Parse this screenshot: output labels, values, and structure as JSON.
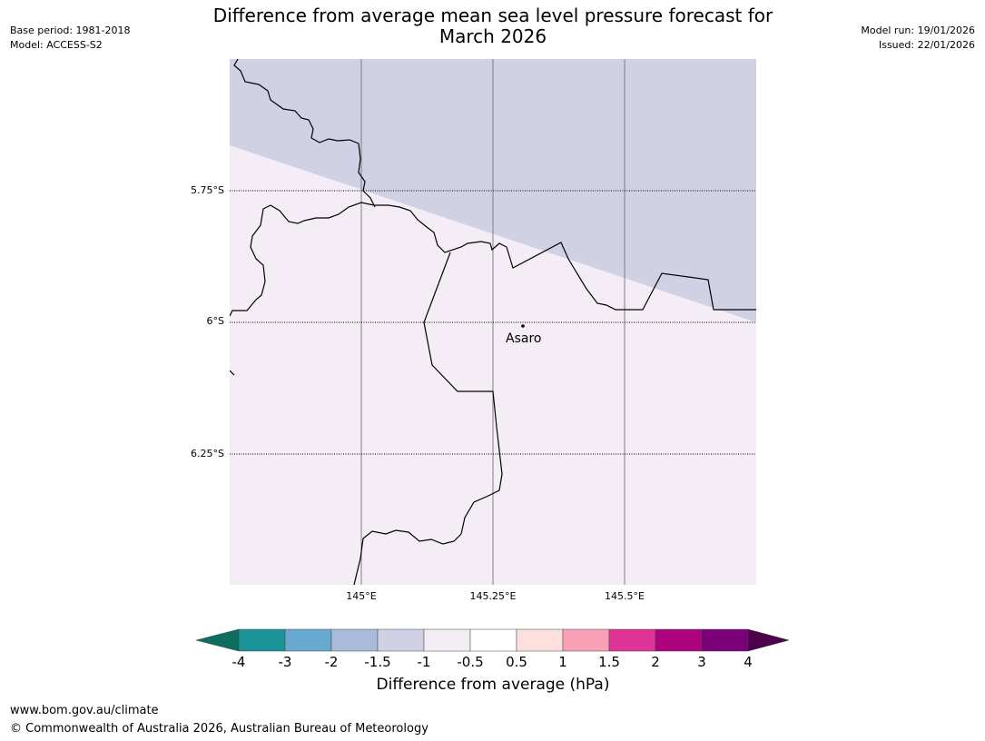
{
  "header": {
    "title_line1": "Difference from average mean sea level pressure forecast for",
    "title_line2": "March 2026",
    "base_period": "Base period: 1981-2018",
    "model": "Model: ACCESS-S2",
    "model_run": "Model run: 19/01/2026",
    "issued": "Issued: 22/01/2026"
  },
  "map": {
    "lat_labels": [
      "5.75°S",
      "6°S",
      "6.25°S"
    ],
    "lon_labels": [
      "145°E",
      "145.25°E",
      "145.5°E"
    ],
    "place_name": "Asaro",
    "fill_colors": {
      "upper": "#d1d1e5",
      "lower": "#f4edf6"
    }
  },
  "colorbar": {
    "title": "Difference from average (hPa)",
    "ticks": [
      "-4",
      "-3",
      "-2",
      "-1.5",
      "-1",
      "-0.5",
      "0.5",
      "1",
      "1.5",
      "2",
      "3",
      "4"
    ],
    "colors": [
      "#0b6e5e",
      "#1b9399",
      "#69a8cf",
      "#a9badb",
      "#d1d1e5",
      "#f4edf6",
      "#ffffff",
      "#fde0de",
      "#f8a0b6",
      "#dd3496",
      "#ae017e",
      "#7a0177",
      "#4d004b"
    ]
  },
  "footer": {
    "url": "www.bom.gov.au/climate",
    "copyright": "© Commonwealth of Australia 2026, Australian Bureau of Meteorology"
  }
}
